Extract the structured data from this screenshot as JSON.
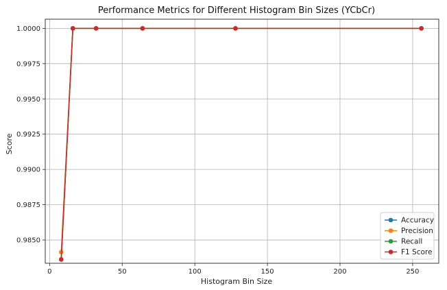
{
  "chart_data": {
    "type": "line",
    "title": "Performance Metrics for Different Histogram Bin Sizes (YCbCr)",
    "xlabel": "Histogram Bin Size",
    "ylabel": "Score",
    "xlim": [
      -3,
      268
    ],
    "ylim": [
      0.98335,
      1.00065
    ],
    "xticks": [
      0,
      50,
      100,
      150,
      200,
      250
    ],
    "yticks": [
      0.985,
      0.9875,
      0.99,
      0.9925,
      0.995,
      0.9975,
      1.0
    ],
    "xtick_labels": [
      "0",
      "50",
      "100",
      "150",
      "200",
      "250"
    ],
    "ytick_labels": [
      "0.9850",
      "0.9875",
      "0.9900",
      "0.9925",
      "0.9950",
      "0.9975",
      "1.0000"
    ],
    "grid": true,
    "legend_position": "lower-right",
    "x": [
      8,
      16,
      32,
      64,
      128,
      256
    ],
    "series": [
      {
        "name": "Accuracy",
        "color": "#1f77b4",
        "values": [
          0.98362,
          1.0,
          1.0,
          1.0,
          1.0,
          1.0
        ]
      },
      {
        "name": "Precision",
        "color": "#ff7f0e",
        "values": [
          0.98414,
          1.0,
          1.0,
          1.0,
          1.0,
          1.0
        ]
      },
      {
        "name": "Recall",
        "color": "#2ca02c",
        "values": [
          0.98362,
          1.0,
          1.0,
          1.0,
          1.0,
          1.0
        ]
      },
      {
        "name": "F1 Score",
        "color": "#d62728",
        "values": [
          0.98362,
          1.0,
          1.0,
          1.0,
          1.0,
          1.0
        ]
      }
    ]
  }
}
